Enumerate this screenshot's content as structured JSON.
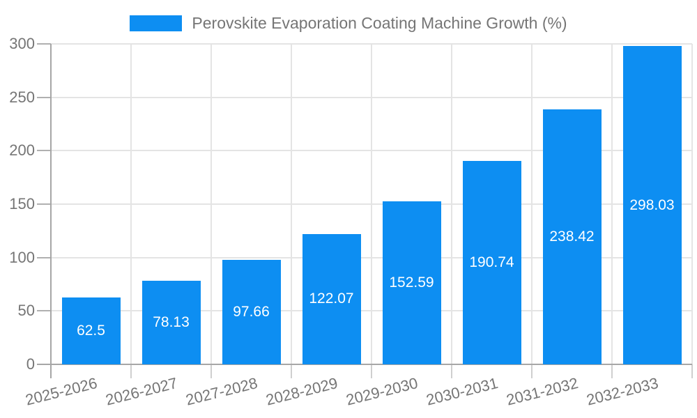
{
  "chart_data": {
    "type": "bar",
    "legend": "Perovskite Evaporation Coating Machine Growth (%)",
    "legend_position": "top",
    "categories": [
      "2025-2026",
      "2026-2027",
      "2027-2028",
      "2028-2029",
      "2029-2030",
      "2030-2031",
      "2031-2032",
      "2032-2033"
    ],
    "values": [
      62.5,
      78.13,
      97.66,
      122.07,
      152.59,
      190.74,
      238.42,
      298.03
    ],
    "value_labels": [
      "62.5",
      "78.13",
      "97.66",
      "122.07",
      "152.59",
      "190.74",
      "238.42",
      "298.03"
    ],
    "title": "",
    "xlabel": "",
    "ylabel": "",
    "ylim": [
      0,
      300
    ],
    "yticks": [
      0,
      50,
      100,
      150,
      200,
      250,
      300
    ],
    "grid": true,
    "x_label_rotation_deg": -14,
    "colors": {
      "bar": "#0d8ef2",
      "grid_line": "#e4e4e4",
      "axis_line": "#a6a6a6",
      "y_tick": "#b0b0b0",
      "x_tick": "#cfcfcf",
      "text": "#757575",
      "value_label_text": "#ffffff",
      "background": "#ffffff"
    }
  }
}
